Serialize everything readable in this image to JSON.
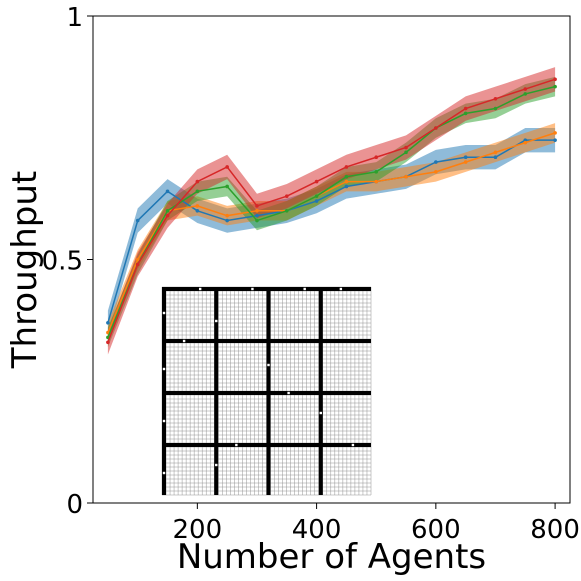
{
  "chart_data": {
    "type": "line",
    "xlabel": "Number of Agents",
    "ylabel": "Throughput",
    "xlim": [
      25,
      825
    ],
    "ylim": [
      0,
      1
    ],
    "xticks": [
      200,
      400,
      600,
      800
    ],
    "yticks": [
      0,
      0.5,
      1
    ],
    "ytick_labels": [
      "0",
      "0.5",
      "1"
    ],
    "grid": false,
    "legend": "none",
    "x": [
      50,
      100,
      150,
      200,
      250,
      300,
      350,
      400,
      450,
      500,
      550,
      600,
      650,
      700,
      750,
      800
    ],
    "series": [
      {
        "color": "#1f77b4",
        "values": [
          0.37,
          0.58,
          0.64,
          0.6,
          0.58,
          0.59,
          0.6,
          0.62,
          0.65,
          0.66,
          0.67,
          0.7,
          0.71,
          0.71,
          0.745,
          0.745
        ],
        "band": 0.025
      },
      {
        "color": "#ff7f0e",
        "values": [
          0.35,
          0.5,
          0.6,
          0.61,
          0.59,
          0.6,
          0.6,
          0.63,
          0.66,
          0.66,
          0.67,
          0.68,
          0.7,
          0.72,
          0.74,
          0.76
        ],
        "band": 0.02
      },
      {
        "color": "#2ca02c",
        "values": [
          0.34,
          0.49,
          0.6,
          0.64,
          0.65,
          0.58,
          0.6,
          0.63,
          0.67,
          0.68,
          0.72,
          0.77,
          0.8,
          0.81,
          0.84,
          0.855
        ],
        "band": 0.02
      },
      {
        "color": "#d62728",
        "values": [
          0.33,
          0.49,
          0.59,
          0.66,
          0.69,
          0.61,
          0.63,
          0.66,
          0.69,
          0.71,
          0.73,
          0.77,
          0.81,
          0.83,
          0.85,
          0.87
        ],
        "band": 0.025
      }
    ],
    "inset": {
      "description": "warehouse grid map",
      "grid_lines": "thin gray cells",
      "wall_color": "#000000"
    }
  }
}
